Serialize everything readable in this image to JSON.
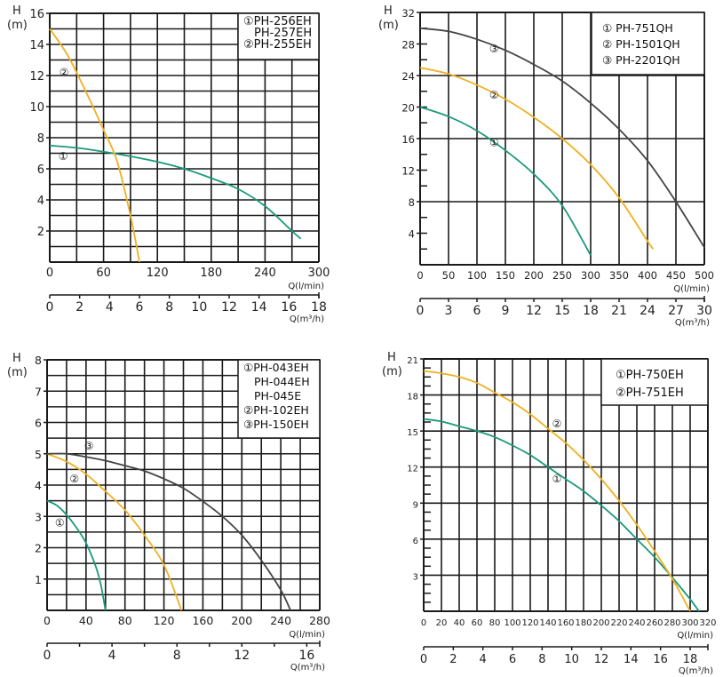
{
  "colors": {
    "teal": "#1a9a7a",
    "orange": "#f0b020",
    "dark": "#444444",
    "grid": "#1a1a1a"
  },
  "chart_data": [
    {
      "type": "line",
      "ylabel": "H",
      "yunit": "(m)",
      "ylim": [
        0,
        16
      ],
      "yticks": [
        "2",
        "4",
        "6",
        "8",
        "10",
        "12",
        "14",
        "16"
      ],
      "xlabel": "Q(l/min)",
      "xlim": [
        0,
        300
      ],
      "xticks": [
        "0",
        "60",
        "120",
        "180",
        "240",
        "300"
      ],
      "x2label": "Q(m³/h)",
      "x2lim": [
        0,
        18
      ],
      "x2ticks": [
        "0",
        "2",
        "4",
        "6",
        "8",
        "10",
        "12",
        "14",
        "16",
        "18"
      ],
      "legend": [
        "①PH-256EH",
        "PH-257EH",
        "②PH-255EH"
      ],
      "series": [
        {
          "name": "①",
          "color": "teal",
          "x": [
            0,
            30,
            60,
            90,
            120,
            150,
            180,
            210,
            240,
            270,
            280
          ],
          "y": [
            7.5,
            7.35,
            7.1,
            6.8,
            6.45,
            6.0,
            5.4,
            4.7,
            3.6,
            2.0,
            1.5
          ],
          "marker_at": [
            15,
            6.8
          ]
        },
        {
          "name": "②",
          "color": "orange",
          "x": [
            0,
            20,
            40,
            60,
            75,
            90,
            100
          ],
          "y": [
            15,
            13.3,
            11.0,
            8.5,
            6.5,
            3.0,
            0
          ],
          "marker_at": [
            16,
            12.2
          ]
        }
      ]
    },
    {
      "type": "line",
      "ylabel": "H",
      "yunit": "(m)",
      "ylim": [
        0,
        32
      ],
      "yticks": [
        "4",
        "8",
        "12",
        "16",
        "20",
        "24",
        "28",
        "32"
      ],
      "xlabel": "Q(l/min)",
      "xlim": [
        0,
        500
      ],
      "xticks": [
        "0",
        "50",
        "100",
        "150",
        "200",
        "250",
        "300",
        "350",
        "400",
        "450",
        "500"
      ],
      "x2label": "Q(m³/h)",
      "x2lim": [
        0,
        30
      ],
      "x2ticks": [
        "0",
        "3",
        "6",
        "9",
        "12",
        "15",
        "18",
        "21",
        "24",
        "27",
        "30"
      ],
      "legend": [
        "① PH-751QH",
        "② PH-1501QH",
        "③ PH-2201QH"
      ],
      "series": [
        {
          "name": "①",
          "color": "teal",
          "x": [
            0,
            50,
            100,
            150,
            200,
            250,
            300
          ],
          "y": [
            20,
            18.8,
            17.0,
            14.5,
            11.5,
            7.5,
            1.2
          ],
          "marker_at": [
            130,
            15.5
          ]
        },
        {
          "name": "②",
          "color": "orange",
          "x": [
            0,
            50,
            100,
            150,
            200,
            250,
            300,
            350,
            400,
            410
          ],
          "y": [
            25,
            24.2,
            22.8,
            21.0,
            18.7,
            16.0,
            12.7,
            8.5,
            3.0,
            2.0
          ],
          "marker_at": [
            130,
            21.5
          ]
        },
        {
          "name": "③",
          "color": "dark",
          "x": [
            0,
            50,
            100,
            150,
            200,
            250,
            300,
            350,
            400,
            450,
            500
          ],
          "y": [
            30,
            29.6,
            28.6,
            27.2,
            25.4,
            23.3,
            20.5,
            17.2,
            13.2,
            8.0,
            2.2
          ],
          "marker_at": [
            130,
            27.4
          ]
        }
      ]
    },
    {
      "type": "line",
      "ylabel": "H",
      "yunit": "(m)",
      "ylim": [
        0,
        8
      ],
      "yticks": [
        "1",
        "2",
        "3",
        "4",
        "5",
        "6",
        "7",
        "8"
      ],
      "xlabel": "Q(l/min)",
      "xlim": [
        0,
        280
      ],
      "xticks": [
        "0",
        "40",
        "80",
        "120",
        "160",
        "200",
        "240",
        "280"
      ],
      "x2label": "Q(m³/h)",
      "x2lim": [
        0,
        16.8
      ],
      "x2ticks": [
        "0",
        "4",
        "8",
        "12",
        "16"
      ],
      "x2values": [
        0,
        4,
        8,
        12,
        16
      ],
      "x2minor": [
        2,
        6,
        10,
        14
      ],
      "legend": [
        "①PH-043EH",
        "PH-044EH",
        "PH-045E",
        "②PH-102EH",
        "③PH-150EH"
      ],
      "series": [
        {
          "name": "①",
          "color": "teal",
          "x": [
            0,
            10,
            20,
            30,
            40,
            50,
            55,
            60
          ],
          "y": [
            3.5,
            3.35,
            3.05,
            2.65,
            2.15,
            1.4,
            0.85,
            0
          ],
          "marker_at": [
            13,
            2.8
          ]
        },
        {
          "name": "②",
          "color": "orange",
          "x": [
            0,
            20,
            40,
            60,
            80,
            100,
            120,
            138
          ],
          "y": [
            5,
            4.75,
            4.35,
            3.8,
            3.2,
            2.4,
            1.45,
            0
          ],
          "marker_at": [
            28,
            4.2
          ]
        },
        {
          "name": "③",
          "color": "dark",
          "x": [
            0,
            20,
            40,
            60,
            80,
            100,
            120,
            140,
            160,
            180,
            200,
            220,
            240,
            250
          ],
          "y": [
            5,
            5,
            4.9,
            4.78,
            4.62,
            4.45,
            4.2,
            3.9,
            3.48,
            3.0,
            2.4,
            1.6,
            0.65,
            0
          ],
          "marker_at": [
            43,
            5.25
          ]
        }
      ]
    },
    {
      "type": "line",
      "ylabel": "H",
      "yunit": "(m)",
      "ylim": [
        0,
        21
      ],
      "yticks": [
        "3",
        "6",
        "9",
        "12",
        "15",
        "18",
        "21"
      ],
      "xlabel": "Q(l/min)",
      "xlim": [
        0,
        320
      ],
      "xticks": [
        "0",
        "20",
        "40",
        "60",
        "80",
        "100",
        "120",
        "140",
        "160",
        "180",
        "200",
        "220",
        "240",
        "260",
        "280",
        "300",
        "320"
      ],
      "x2label": "Q(m³/h)",
      "x2lim": [
        0,
        19.2
      ],
      "x2ticks": [
        "0",
        "2",
        "4",
        "6",
        "8",
        "10",
        "12",
        "14",
        "16",
        "18"
      ],
      "legend": [
        "①PH-750EH",
        "②PH-751EH"
      ],
      "series": [
        {
          "name": "①",
          "color": "teal",
          "x": [
            0,
            20,
            40,
            60,
            80,
            100,
            120,
            140,
            160,
            180,
            200,
            220,
            240,
            260,
            280,
            300,
            310
          ],
          "y": [
            16,
            15.8,
            15.4,
            15.0,
            14.5,
            13.8,
            13.0,
            12.0,
            11.0,
            10.0,
            8.8,
            7.5,
            6.0,
            4.5,
            2.8,
            1.0,
            0
          ],
          "marker_at": [
            150,
            11.0
          ]
        },
        {
          "name": "②",
          "color": "orange",
          "x": [
            0,
            20,
            40,
            60,
            80,
            100,
            120,
            140,
            160,
            180,
            200,
            220,
            240,
            260,
            280,
            300
          ],
          "y": [
            20,
            19.8,
            19.5,
            19.0,
            18.2,
            17.4,
            16.4,
            15.2,
            14.0,
            12.6,
            11.0,
            9.2,
            7.2,
            5.0,
            2.7,
            0
          ],
          "marker_at": [
            150,
            15.6
          ]
        }
      ]
    }
  ]
}
